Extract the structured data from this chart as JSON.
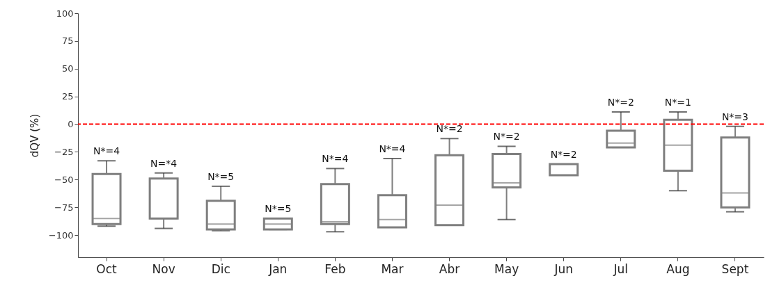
{
  "chart_data": {
    "type": "box",
    "ylabel": "dQV (%)",
    "categories": [
      "Oct",
      "Nov",
      "Dic",
      "Jan",
      "Feb",
      "Mar",
      "Abr",
      "May",
      "Jun",
      "Jul",
      "Aug",
      "Sept"
    ],
    "boxes": [
      {
        "low": -92,
        "q1": -90,
        "median": -85,
        "q3": -45,
        "high": -33
      },
      {
        "low": -94,
        "q1": -85,
        "median": -85,
        "q3": -49,
        "high": -44
      },
      {
        "low": -96,
        "q1": -95,
        "median": -90,
        "q3": -69,
        "high": -56
      },
      {
        "low": -95,
        "q1": -95,
        "median": -90,
        "q3": -85,
        "high": -85
      },
      {
        "low": -97,
        "q1": -90,
        "median": -88,
        "q3": -54,
        "high": -40
      },
      {
        "low": -93,
        "q1": -93,
        "median": -86,
        "q3": -64,
        "high": -31
      },
      {
        "low": -91,
        "q1": -91,
        "median": -73,
        "q3": -28,
        "high": -13
      },
      {
        "low": -86,
        "q1": -57,
        "median": -53,
        "q3": -27,
        "high": -20
      },
      {
        "low": -46,
        "q1": -46,
        "median": -46,
        "q3": -36,
        "high": -36
      },
      {
        "low": -21,
        "q1": -21,
        "median": -17,
        "q3": -6,
        "high": 11
      },
      {
        "low": -60,
        "q1": -42,
        "median": -19,
        "q3": 4,
        "high": 11
      },
      {
        "low": -79,
        "q1": -75,
        "median": -62,
        "q3": -12,
        "high": -2
      }
    ],
    "color": "#7f7f7f",
    "ylim": [
      -120,
      100
    ],
    "yticks": [
      -100,
      -75,
      -50,
      -25,
      0,
      25,
      50,
      75,
      100
    ],
    "grid": false,
    "ref_lines": [
      {
        "axis": "y",
        "value": 0,
        "color": "#ff0000",
        "line_style": "dashed"
      }
    ],
    "annotations": [
      "N*=4",
      "N=*4",
      "N*=5",
      "N*=5",
      "N*=4",
      "N*=4",
      "N*=2",
      "N*=2",
      "N*=2",
      "N*=2",
      "N*=1",
      "N*=3"
    ]
  }
}
